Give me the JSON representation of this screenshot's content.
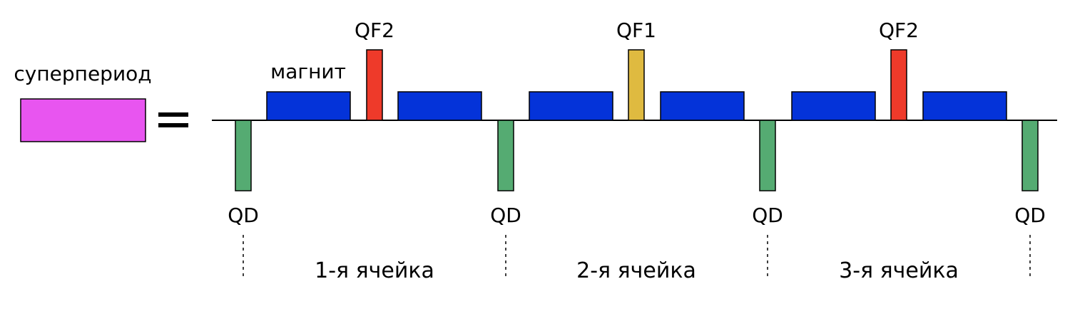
{
  "superperiod": {
    "label": "суперпериод",
    "color": "#e855f0",
    "equals_sign": "="
  },
  "lattice": {
    "magnet_label": "магнит",
    "colors": {
      "dipole": "#0433d9",
      "qf2": "#ee3a2a",
      "qf1": "#dfba40",
      "qd": "#55ab72",
      "outline": "#000000"
    },
    "focusing_quads": [
      {
        "label": "QF2",
        "type": "qf2"
      },
      {
        "label": "QF1",
        "type": "qf1"
      },
      {
        "label": "QF2",
        "type": "qf2"
      }
    ],
    "defocusing_quads": [
      {
        "label": "QD"
      },
      {
        "label": "QD"
      },
      {
        "label": "QD"
      },
      {
        "label": "QD"
      }
    ],
    "cells": [
      {
        "label": "1-я ячейка"
      },
      {
        "label": "2-я ячейка"
      },
      {
        "label": "3-я ячейка"
      }
    ]
  }
}
